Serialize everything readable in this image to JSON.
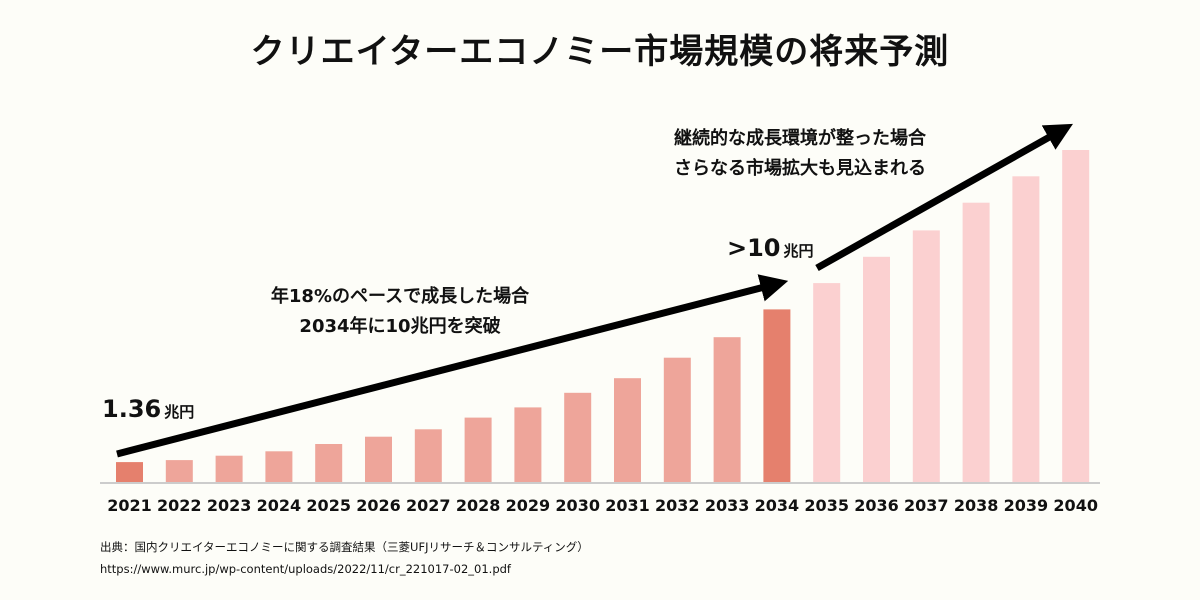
{
  "title": "クリエイターエコノミー市場規模の将来予測",
  "annotations": {
    "start_value": "1.36",
    "start_unit": "兆円",
    "milestone_value": ">10",
    "milestone_unit": "兆円",
    "note_18pct_line1": "年18%のペースで成長した場合",
    "note_18pct_line2": "2034年に10兆円を突破",
    "note_future_line1": "継続的な成長環境が整った場合",
    "note_future_line2": "さらなる市場拡大も見込まれる"
  },
  "source": {
    "line1": "出典：国内クリエイターエコノミーに関する調査結果（三菱UFJリサーチ＆コンサルティング）",
    "line2": "https://www.murc.jp/wp-content/uploads/2022/11/cr_221017-02_01.pdf"
  },
  "colors": {
    "highlight": "#e5806d",
    "growth": "#eea59a",
    "future": "#fbd0d0",
    "baseline": "#cccccc",
    "arrow": "#000000"
  },
  "chart_data": {
    "type": "bar",
    "title": "クリエイターエコノミー市場規模の将来予測",
    "xlabel": "",
    "ylabel": "兆円",
    "grid": false,
    "ylim": [
      0,
      23
    ],
    "categories": [
      "2021",
      "2022",
      "2023",
      "2024",
      "2025",
      "2026",
      "2027",
      "2028",
      "2029",
      "2030",
      "2031",
      "2032",
      "2033",
      "2034",
      "2035",
      "2036",
      "2037",
      "2038",
      "2039",
      "2040"
    ],
    "values": [
      1.36,
      1.5,
      1.8,
      2.1,
      2.6,
      3.1,
      3.6,
      4.4,
      5.1,
      6.1,
      7.1,
      8.5,
      9.9,
      11.8,
      13.6,
      15.4,
      17.2,
      19.1,
      20.9,
      22.7
    ],
    "bar_groups": [
      "highlight",
      "growth",
      "growth",
      "growth",
      "growth",
      "growth",
      "growth",
      "growth",
      "growth",
      "growth",
      "growth",
      "growth",
      "growth",
      "highlight",
      "future",
      "future",
      "future",
      "future",
      "future",
      "future"
    ],
    "data_labels": [
      {
        "category": "2021",
        "text": "1.36兆円"
      },
      {
        "category": "2034",
        "text": ">10兆円"
      }
    ],
    "legend": "none"
  }
}
